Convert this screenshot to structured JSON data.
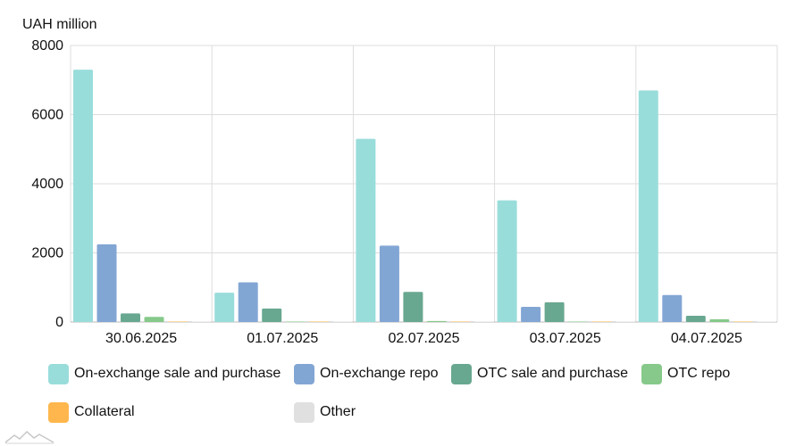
{
  "colors": {
    "on_exchange_sale_purchase": "#99DDDB",
    "on_exchange_repo": "#82A6D4",
    "otc_sale_purchase": "#68A890",
    "otc_repo": "#86C98A",
    "collateral": "#FFB74D",
    "other": "#E0E0E0",
    "grid": "#DDDDDD",
    "axis_text": "#111111"
  },
  "chart_data": {
    "type": "bar",
    "y_unit_label": "UAH million",
    "categories": [
      "30.06.2025",
      "01.07.2025",
      "02.07.2025",
      "03.07.2025",
      "04.07.2025"
    ],
    "ylim": [
      0,
      8000
    ],
    "y_ticks": [
      0,
      2000,
      4000,
      6000,
      8000
    ],
    "grid": true,
    "legend_position": "bottom",
    "series": [
      {
        "name": "On-exchange sale and purchase",
        "color_key": "on_exchange_sale_purchase",
        "values": [
          7300,
          850,
          5300,
          3520,
          6700
        ]
      },
      {
        "name": "On-exchange repo",
        "color_key": "on_exchange_repo",
        "values": [
          2250,
          1150,
          2210,
          440,
          780
        ]
      },
      {
        "name": "OTC sale and purchase",
        "color_key": "otc_sale_purchase",
        "values": [
          250,
          390,
          870,
          570,
          180
        ]
      },
      {
        "name": "OTC repo",
        "color_key": "otc_repo",
        "values": [
          150,
          10,
          30,
          10,
          80
        ]
      },
      {
        "name": "Collateral",
        "color_key": "collateral",
        "values": [
          12,
          5,
          5,
          5,
          5
        ]
      },
      {
        "name": "Other",
        "color_key": "other",
        "values": [
          3,
          3,
          3,
          3,
          3
        ]
      }
    ]
  },
  "legend": {
    "items": [
      {
        "label": "On-exchange sale and purchase",
        "color_key": "on_exchange_sale_purchase",
        "icon": "square-swatch"
      },
      {
        "label": "On-exchange repo",
        "color_key": "on_exchange_repo",
        "icon": "square-swatch"
      },
      {
        "label": "OTC sale and purchase",
        "color_key": "otc_sale_purchase",
        "icon": "square-swatch"
      },
      {
        "label": "OTC repo",
        "color_key": "otc_repo",
        "icon": "square-swatch"
      },
      {
        "label": "Collateral",
        "color_key": "collateral",
        "icon": "square-swatch"
      },
      {
        "label": "Other",
        "color_key": "other",
        "icon": "square-swatch"
      }
    ]
  },
  "logo": {
    "icon": "mountain-logo-icon"
  }
}
